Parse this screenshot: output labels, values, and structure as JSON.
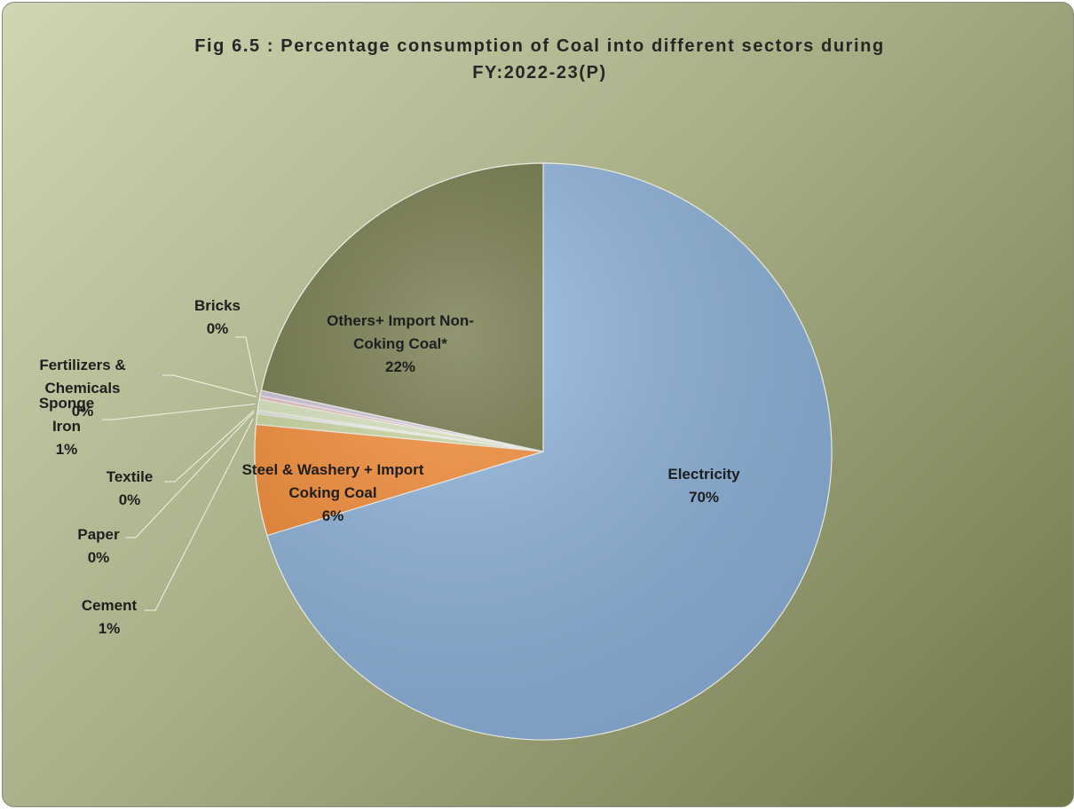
{
  "chart_data": {
    "type": "pie",
    "title": "Fig 6.5 : Percentage consumption of Coal into different sectors during FY:2022-23(P)",
    "categories": [
      "Electricity",
      "Steel  & Washery + Import Coking Coal",
      "Cement",
      "Paper",
      "Textile",
      "Sponge Iron",
      "Fertilizers & Chemicals",
      "Bricks",
      "Others+ Import Non-Coking Coal*"
    ],
    "values": [
      70.3,
      6.2,
      0.6,
      0.1,
      0.1,
      0.6,
      0.2,
      0.3,
      21.6
    ],
    "value_labels": [
      "70%",
      "6%",
      "1%",
      "0%",
      "0%",
      "1%",
      "0%",
      "0%",
      "22%"
    ],
    "colors": [
      "#8db3dc",
      "#f58a32",
      "#c9d79d",
      "#b9cde5",
      "#e6d9a8",
      "#d7e4bd",
      "#e6b9b8",
      "#ccc1da",
      "#6d7241"
    ]
  }
}
